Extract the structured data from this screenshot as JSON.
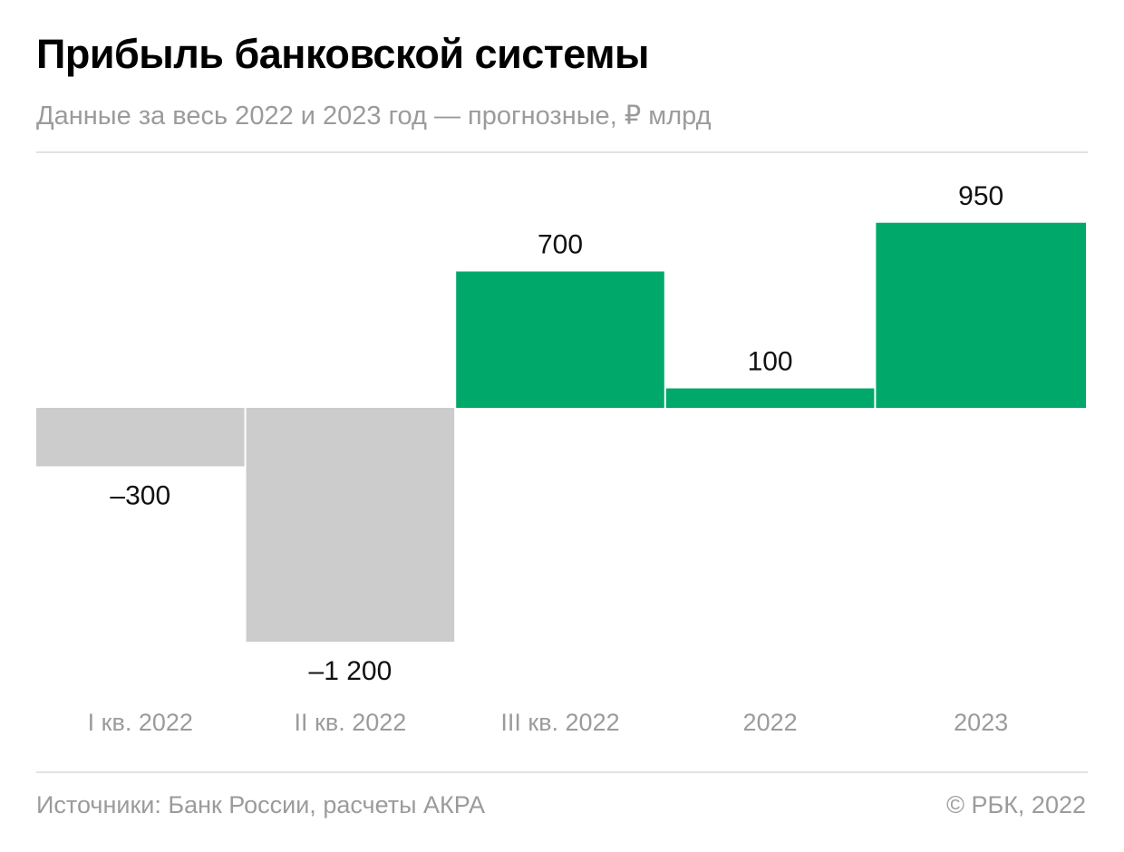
{
  "header": {
    "title": "Прибыль банковской системы",
    "subtitle": "Данные за весь 2022 и 2023 год — прогнозные, ₽ млрд"
  },
  "chart_data": {
    "type": "bar",
    "categories": [
      "I кв. 2022",
      "II кв. 2022",
      "III кв. 2022",
      "2022",
      "2023"
    ],
    "values": [
      -300,
      -1200,
      700,
      100,
      950
    ],
    "value_labels": [
      "–300",
      "–1 200",
      "700",
      "100",
      "950"
    ],
    "title": "Прибыль банковской системы",
    "subtitle": "Данные за весь 2022 и 2023 год — прогнозные, ₽ млрд",
    "colors": {
      "negative": "#cccccc",
      "positive": "#00a96a"
    },
    "grid": false,
    "legend": "none"
  },
  "footer": {
    "source": "Источники: Банк России, расчеты АКРА",
    "copyright": "© РБК, 2022"
  }
}
